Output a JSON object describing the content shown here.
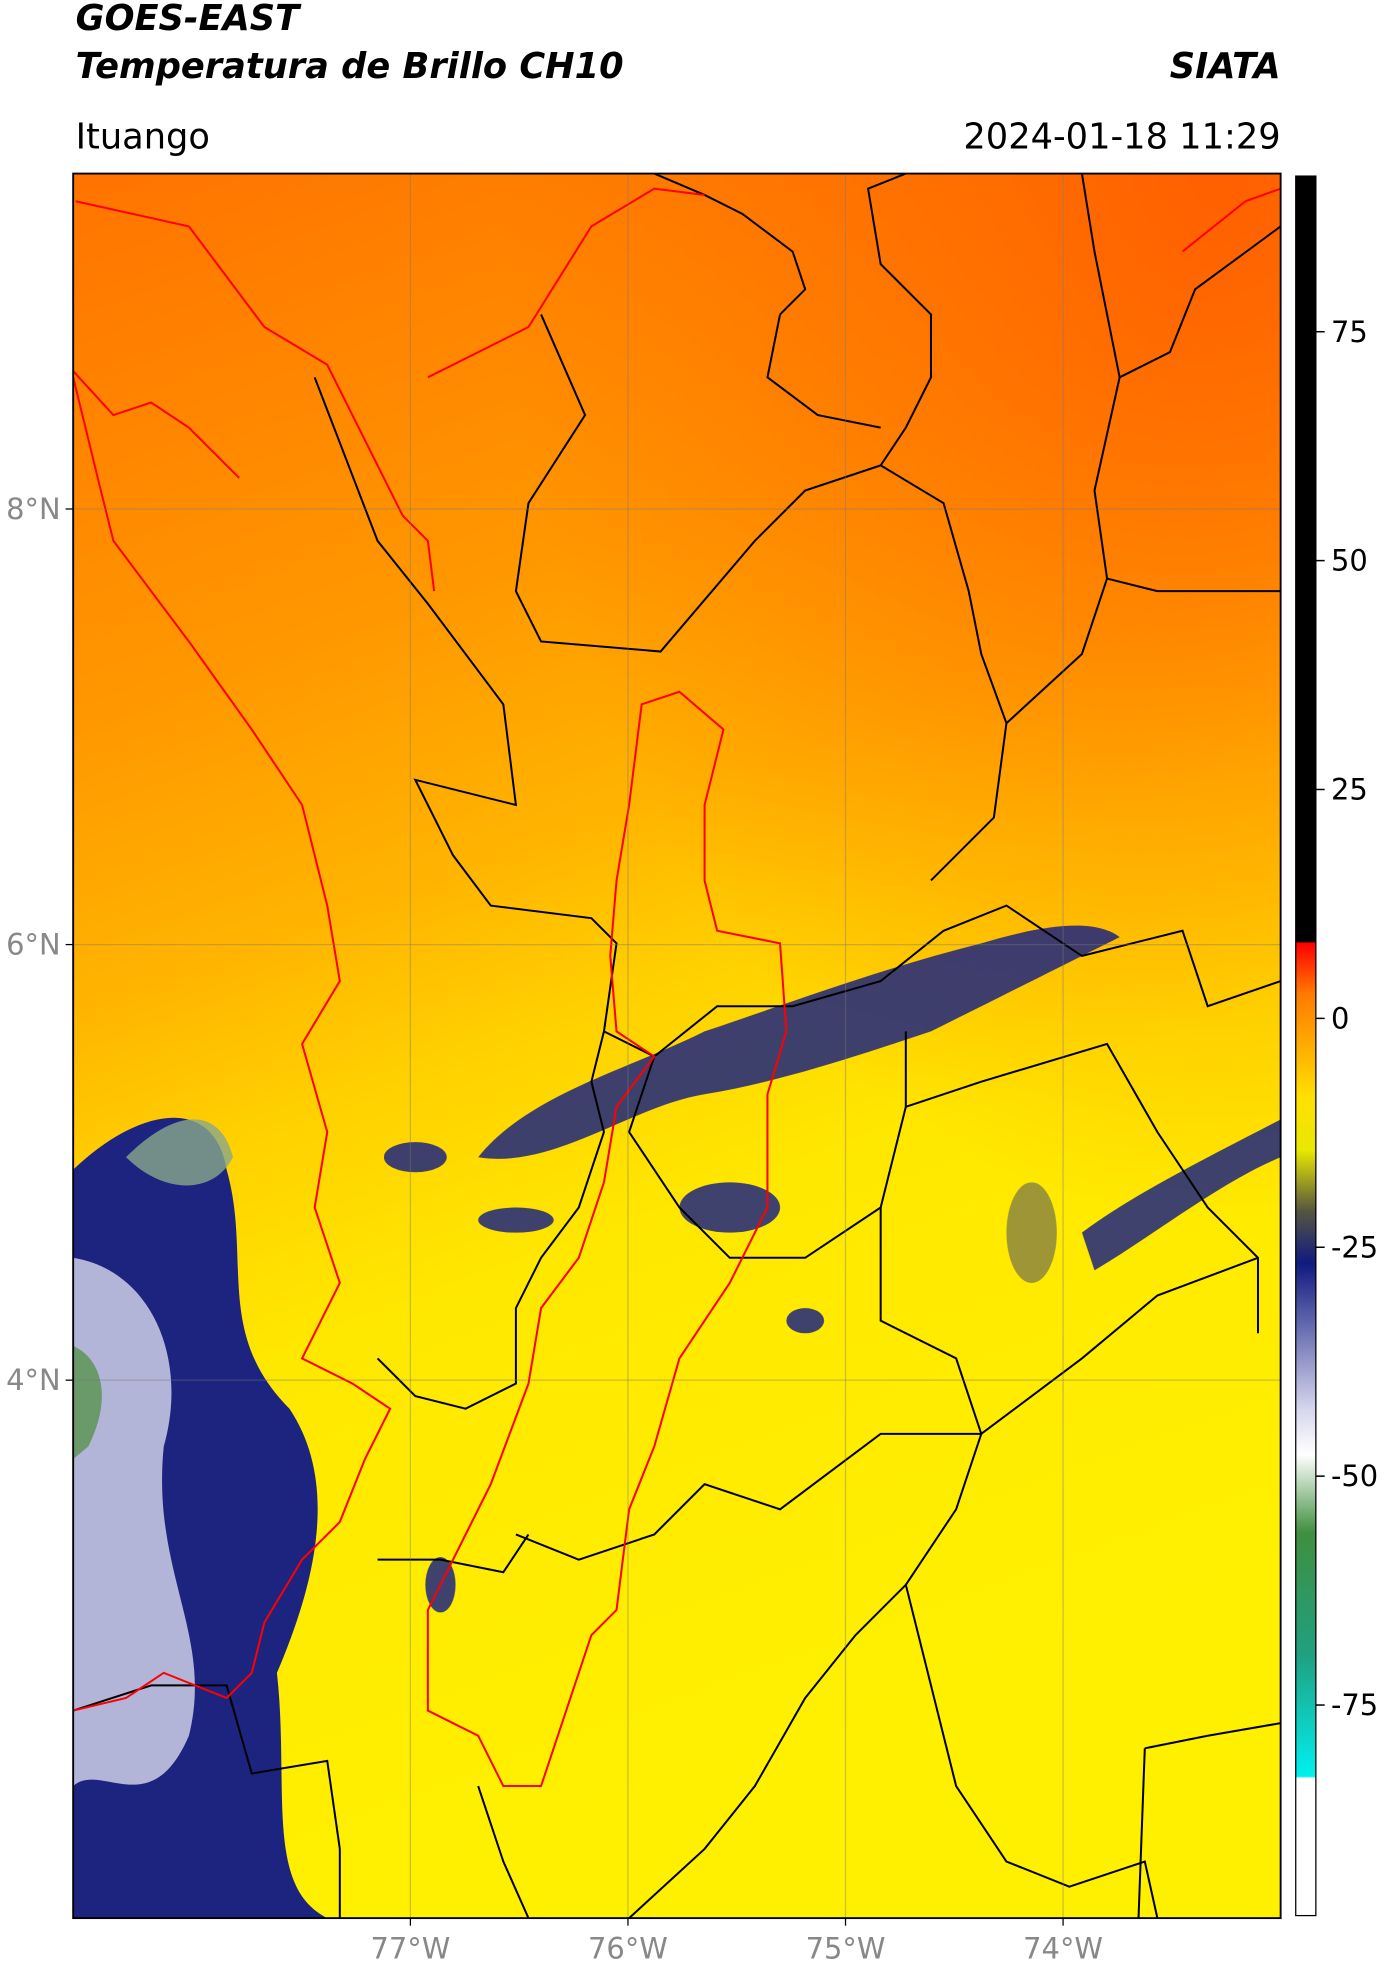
{
  "header": {
    "title": "GOES-EAST",
    "subtitle": "Temperatura de Brillo CH10",
    "source": "SIATA",
    "region": "Ituango",
    "datetime": "2024-01-18 11:29"
  },
  "map": {
    "xlim": [
      -78.55,
      -73.0
    ],
    "ylim": [
      1.53,
      9.54
    ],
    "xticks": [
      {
        "value": -77,
        "label": "77°W"
      },
      {
        "value": -76,
        "label": "76°W"
      },
      {
        "value": -75,
        "label": "75°W"
      },
      {
        "value": -74,
        "label": "74°W"
      }
    ],
    "yticks": [
      {
        "value": 8,
        "label": "8°N"
      },
      {
        "value": 6,
        "label": "6°N"
      },
      {
        "value": 4,
        "label": "4°N"
      }
    ]
  },
  "colorbar": {
    "lim": [
      -98,
      92
    ],
    "ticks": [
      75,
      50,
      25,
      0,
      -25,
      -50,
      -75
    ]
  }
}
